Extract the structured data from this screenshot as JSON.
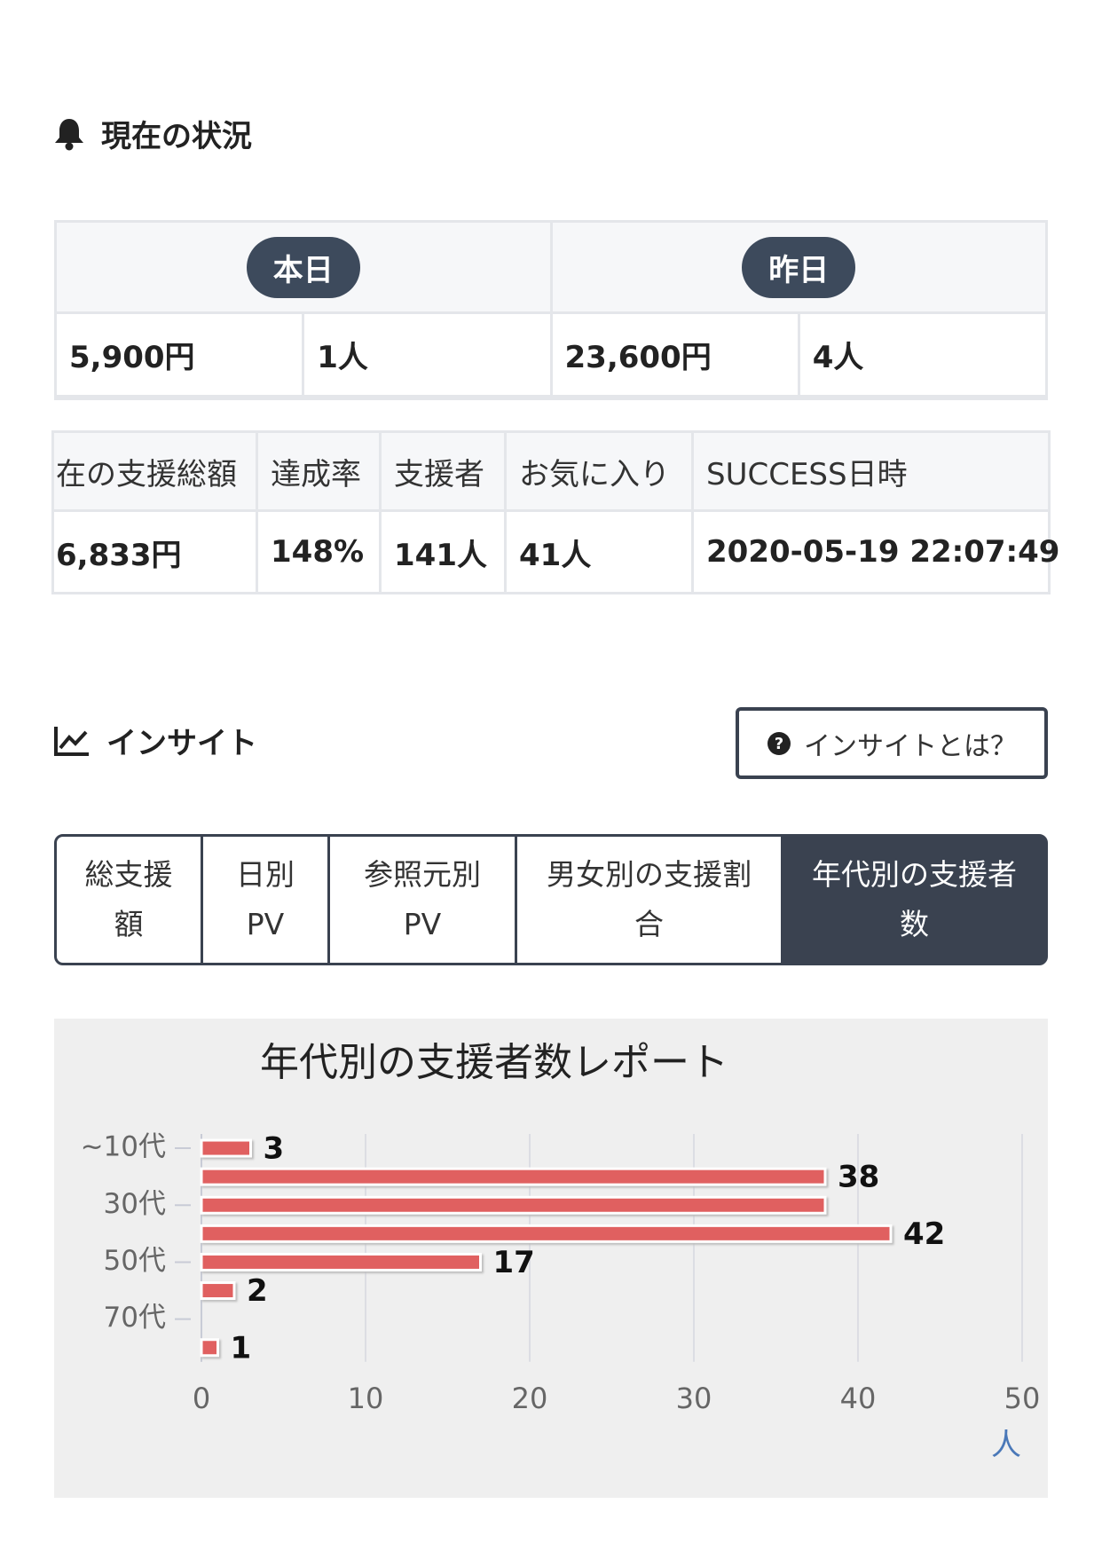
{
  "status": {
    "title": "現在の状況",
    "today": {
      "label": "本日",
      "amount": "5,900円",
      "supporters": "1人"
    },
    "yesterday": {
      "label": "昨日",
      "amount": "23,600円",
      "supporters": "4人"
    }
  },
  "summary": {
    "headers": [
      "在の支援総額",
      "達成率",
      "支援者",
      "お気に入り",
      "SUCCESS日時"
    ],
    "values": [
      "6,833円",
      "148%",
      "141人",
      "41人",
      "2020-05-19 22:07:49"
    ]
  },
  "insight": {
    "title": "インサイト",
    "help": "インサイトとは？",
    "tabs": [
      "総支援額",
      "日別PV",
      "参照元別PV",
      "男女別の支援割合",
      "年代別の支援者数"
    ]
  },
  "chart_data": {
    "type": "bar",
    "orientation": "horizontal",
    "title": "年代別の支援者数レポート",
    "categories": [
      "~10代",
      null,
      "30代",
      null,
      "50代",
      null,
      "70代",
      null
    ],
    "values": [
      3,
      38,
      38,
      42,
      17,
      2,
      null,
      1
    ],
    "value_labels": [
      "3",
      "38",
      null,
      "42",
      "17",
      "2",
      null,
      "1"
    ],
    "color": "#e06060",
    "xlim": [
      0,
      50
    ],
    "xticks": [
      0,
      10,
      20,
      30,
      40,
      50
    ],
    "xlabel": "人",
    "grid": true
  }
}
